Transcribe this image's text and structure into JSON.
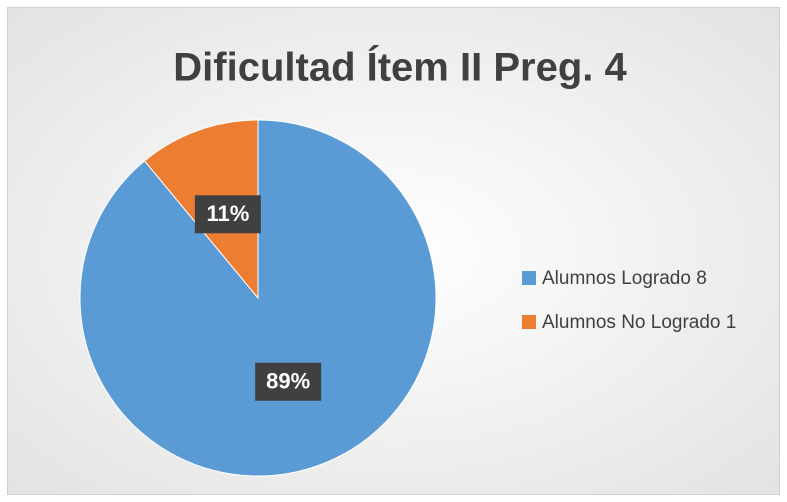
{
  "chart_data": {
    "type": "pie",
    "title": "Dificultad Ítem II Preg. 4",
    "categories": [
      "Alumnos Logrado 8",
      "Alumnos No Logrado 1"
    ],
    "values": [
      89,
      11
    ],
    "value_labels": [
      "89%",
      "11%"
    ],
    "colors": [
      "#5b9bd5",
      "#ed7d31"
    ],
    "legend": "right"
  }
}
